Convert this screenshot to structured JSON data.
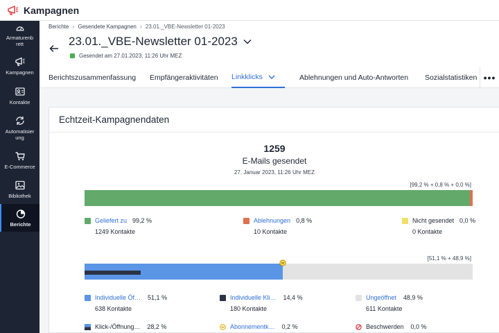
{
  "app": {
    "title": "Kampagnen",
    "logo_icon": "megaphone-icon"
  },
  "sidebar": {
    "items": [
      {
        "label": "Armaturenbrett",
        "icon": "dashboard-icon",
        "active": false
      },
      {
        "label": "Kampagnen",
        "icon": "megaphone-icon",
        "active": false
      },
      {
        "label": "Kontakte",
        "icon": "contacts-icon",
        "active": false
      },
      {
        "label": "Automatisierung",
        "icon": "automation-icon",
        "active": false
      },
      {
        "label": "E-Commerce",
        "icon": "cart-icon",
        "active": false
      },
      {
        "label": "Bibliothek",
        "icon": "image-icon",
        "active": false
      },
      {
        "label": "Berichte",
        "icon": "pie-chart-icon",
        "active": true
      }
    ]
  },
  "breadcrumb": {
    "items": [
      "Berichte",
      "Gesendete Kampagnen",
      "23.01._VBE-Newsletter 01-2023"
    ]
  },
  "campaign": {
    "title": "23.01._VBE-Newsletter 01-2023",
    "status": "Gesendet am 27.01.2023, 11:26 Uhr MEZ",
    "status_color": "#4caf50"
  },
  "tabs": [
    {
      "label": "Berichtszusammenfassung",
      "active": false
    },
    {
      "label": "Empfängeraktivitäten",
      "active": false
    },
    {
      "label": "Linkklicks",
      "active": true,
      "dropdown": true
    },
    {
      "label": "Ablehnungen und Auto-Antworten",
      "active": false
    },
    {
      "label": "Sozialstatistiken",
      "active": false
    }
  ],
  "more_label": "•••",
  "card": {
    "title": "Echtzeit-Kampagnendaten",
    "sent_count": "1259",
    "sent_label": "E-Mails gesendet",
    "sent_date": "27. Januar 2023, 11:26 Uhr MEZ"
  },
  "delivery": {
    "summary": "[99,2 % + 0,8 % + 0,0 %]",
    "fractions": [
      0.992,
      0.008,
      0.0
    ],
    "colors": [
      "#63a96a",
      "#e07052",
      "#f0e06a"
    ],
    "legend": [
      {
        "label": "Geliefert zu",
        "value": "99,2 %",
        "count": "1249 Kontakte",
        "color": "#63a96a",
        "link": true
      },
      {
        "label": "Ablehnungen",
        "value": "0,8 %",
        "count": "10 Kontakte",
        "color": "#e07052",
        "link": true
      },
      {
        "label": "Nicht gesendet",
        "value": "0,0 %",
        "count": "0 Kontakte",
        "color": "#f0e06a",
        "link": false
      }
    ]
  },
  "opens": {
    "summary": "[51,1 % + 48,9 %]",
    "opened_fraction": 0.511,
    "unopened_fraction": 0.489,
    "click_fraction": 0.144,
    "colors": {
      "opened": "#5b95e6",
      "unopened": "#e3e3e3",
      "clicks": "#2b3445"
    },
    "legend": [
      {
        "label": "Individuelle Öf…",
        "value": "51,1 %",
        "count": "638 Kontakte",
        "color": "#5b95e6",
        "link": true,
        "icon": "square"
      },
      {
        "label": "Individuelle Kli…",
        "value": "14,4 %",
        "count": "180 Kontakte",
        "color": "#2b3445",
        "link": true,
        "icon": "square"
      },
      {
        "label": "Ungeöffnet",
        "value": "48,9 %",
        "count": "611 Kontakte",
        "color": "#e3e3e3",
        "link": true,
        "icon": "square"
      }
    ],
    "legend2": [
      {
        "label": "Klick-/Öffnung…",
        "value": "28,2 %",
        "icon": "click-open-icon",
        "link": false
      },
      {
        "label": "Abonnementk…",
        "value": "0,2 %",
        "icon": "unsubscribe-icon",
        "link": true
      },
      {
        "label": "Beschwerden",
        "value": "0,0 %",
        "icon": "complaint-icon",
        "link": false
      }
    ]
  }
}
